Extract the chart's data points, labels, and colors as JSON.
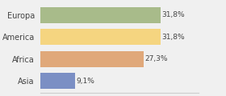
{
  "categories": [
    "Europa",
    "America",
    "Africa",
    "Asia"
  ],
  "values": [
    31.8,
    31.8,
    27.3,
    9.1
  ],
  "labels": [
    "31,8%",
    "31,8%",
    "27,3%",
    "9,1%"
  ],
  "bar_colors": [
    "#a8bb8a",
    "#f5d580",
    "#e0a87a",
    "#7b8fc4"
  ],
  "background_color": "#f0f0f0",
  "figsize": [
    2.8,
    1.2
  ],
  "dpi": 100
}
